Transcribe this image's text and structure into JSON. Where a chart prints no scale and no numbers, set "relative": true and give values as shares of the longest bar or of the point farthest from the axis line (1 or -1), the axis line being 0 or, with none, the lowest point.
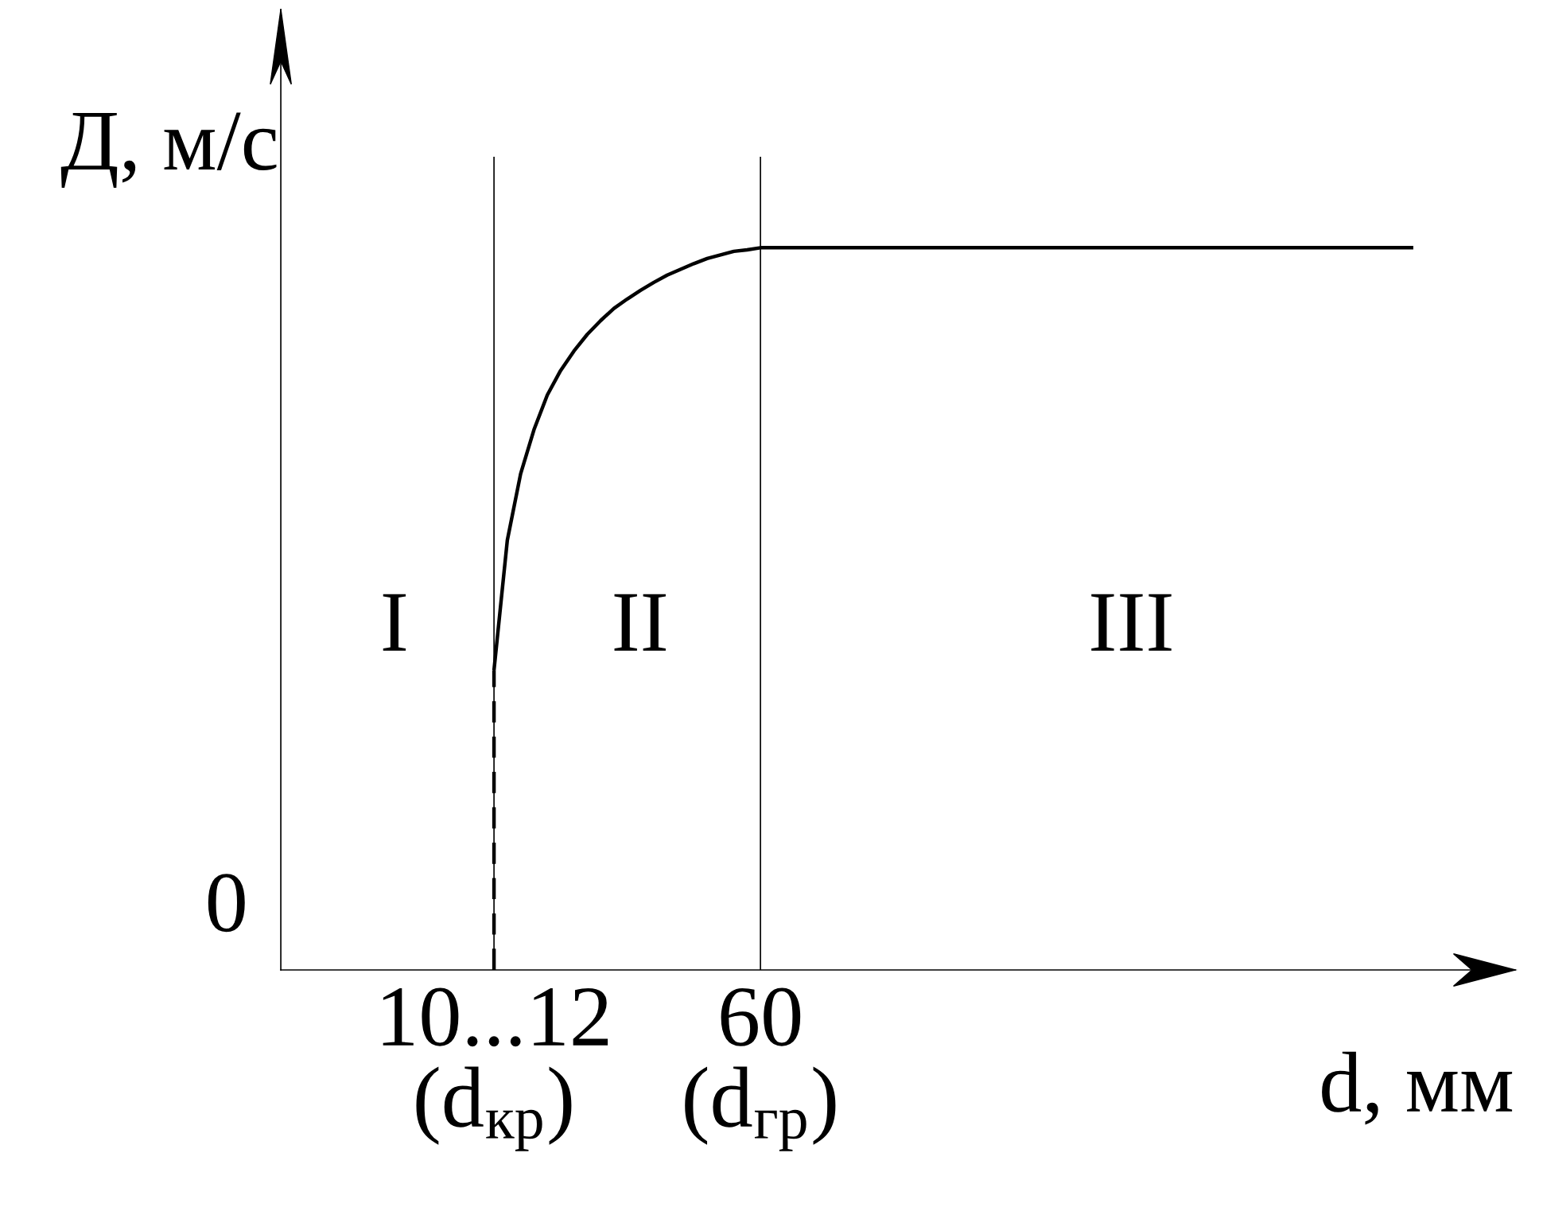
{
  "chart_data": {
    "type": "line",
    "relative": true,
    "xlabel": "d, мм",
    "ylabel": "Д, м/с",
    "categories": [
      null,
      null,
      null,
      null,
      null,
      null,
      null,
      null,
      null,
      null,
      null,
      null,
      null,
      null,
      null,
      null,
      "10...12\n(d$_{кр}$)",
      null,
      null,
      null,
      null,
      null,
      null,
      null,
      null,
      null,
      null,
      null,
      null,
      null,
      null,
      null,
      null,
      null,
      null,
      null,
      "60\n(d$_{гр}$)",
      null,
      null,
      null,
      null,
      null,
      null,
      null,
      null,
      null,
      null,
      null,
      null,
      null,
      null,
      null,
      null,
      null,
      null,
      null,
      null,
      null,
      null,
      null,
      null,
      null,
      null,
      null,
      null,
      null,
      null,
      null,
      null,
      null,
      null,
      null,
      null,
      null,
      null,
      null,
      null,
      null,
      null,
      null,
      null,
      null,
      null,
      null,
      null,
      null
    ],
    "series": [
      {
        "color": "#000000",
        "line_style": "dashed",
        "x": [
          "10...12\n(d$_{кр}$)",
          "10...12\n(d$_{кр}$)"
        ],
        "values": [
          0,
          0.415
        ]
      },
      {
        "color": "#000000",
        "line_style": "solid",
        "values": [
          null,
          null,
          null,
          null,
          null,
          null,
          null,
          null,
          null,
          null,
          null,
          null,
          null,
          null,
          null,
          null,
          0.415,
          0.595,
          0.687,
          0.748,
          0.796,
          0.83,
          0.857,
          0.88,
          0.899,
          0.916,
          0.929,
          0.941,
          0.952,
          0.962,
          0.97,
          0.978,
          0.985,
          0.99,
          0.995,
          0.997,
          1,
          1,
          1,
          1,
          1,
          1,
          1,
          1,
          1,
          1,
          1,
          1,
          1,
          1,
          1,
          1,
          1,
          1,
          1,
          1,
          1,
          1,
          1,
          1,
          1,
          1,
          1,
          1,
          1,
          1,
          1,
          1,
          1,
          1,
          1,
          1,
          1,
          1,
          1,
          1,
          1,
          1,
          1,
          1,
          1,
          1,
          1,
          1,
          1,
          1
        ]
      }
    ],
    "annotations": [
      "0",
      "I",
      "II",
      "III"
    ],
    "grid": "x",
    "legend": false,
    "marker": "none"
  }
}
